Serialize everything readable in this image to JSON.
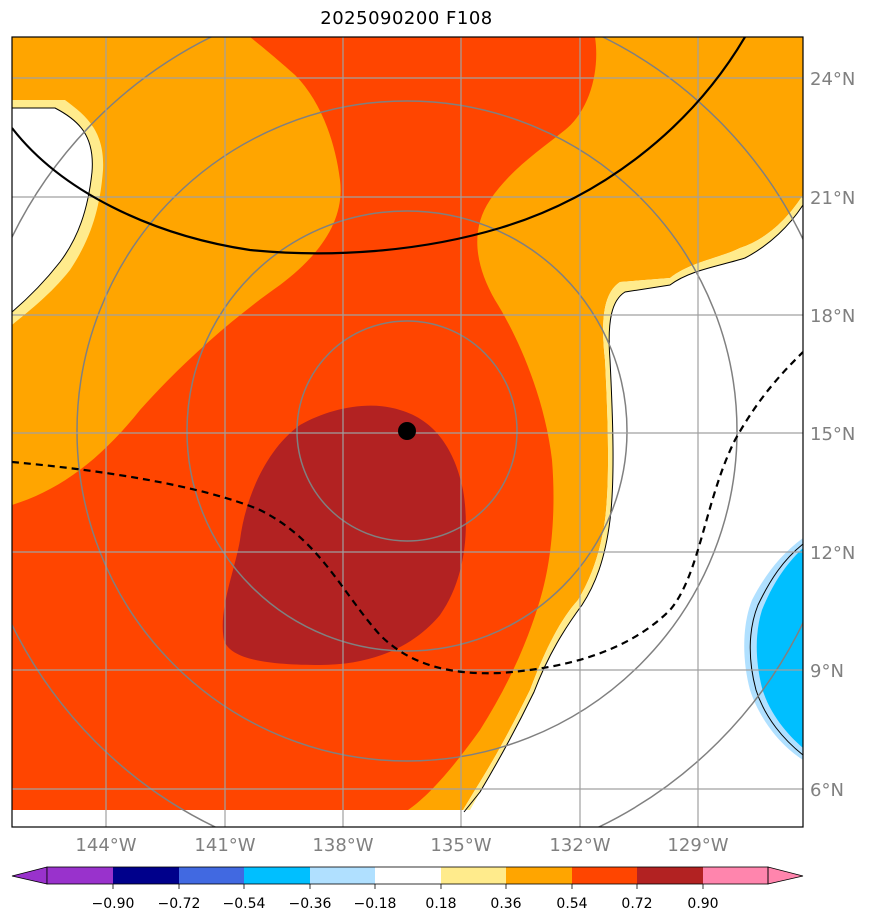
{
  "title": "2025090200 F108",
  "map": {
    "lon_labels": [
      "144°W",
      "141°W",
      "138°W",
      "135°W",
      "132°W",
      "129°W"
    ],
    "lat_labels": [
      "24°N",
      "21°N",
      "18°N",
      "15°N",
      "12°N",
      "9°N",
      "6°N"
    ],
    "grid_color": "#a0a0a0",
    "label_color": "#808080"
  },
  "colorbar": {
    "levels": [
      "−0.90",
      "−0.72",
      "−0.54",
      "−0.36",
      "−0.18",
      "0.18",
      "0.36",
      "0.54",
      "0.72",
      "0.90"
    ],
    "colors": [
      "#9932cc",
      "#00008b",
      "#4169e1",
      "#00bfff",
      "#b0e0ff",
      "#ffffff",
      "#ffeb8c",
      "#ffa500",
      "#ff4500",
      "#b22222",
      "#ff85ad"
    ]
  },
  "fill_colors": {
    "c036_054": "#ffa500",
    "c054_072": "#ff4500",
    "c072_090": "#b22222",
    "c018_036": "#ffeb8c",
    "cn054_036": "#00bfff",
    "cn036_018": "#b0e0ff"
  },
  "storm_center_marker": "black-dot"
}
